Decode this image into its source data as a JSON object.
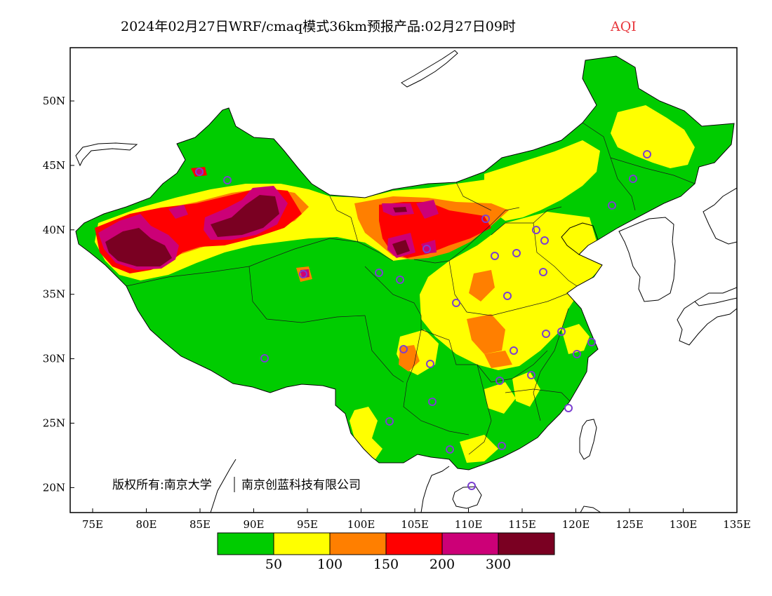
{
  "title": {
    "main": "2024年02月27日WRF/cmaq模式36km预报产品:02月27日09时",
    "variable": "AQI"
  },
  "colors": {
    "title_variable": "#e8383d",
    "station_marker": "#7b3fd0",
    "background": "#ffffff"
  },
  "axes": {
    "lon_labels": [
      "75E",
      "80E",
      "85E",
      "90E",
      "95E",
      "100E",
      "105E",
      "110E",
      "115E",
      "120E",
      "125E",
      "130E",
      "135E"
    ],
    "lat_labels": [
      "50N",
      "45N",
      "40N",
      "35N",
      "30N",
      "25N",
      "20N"
    ]
  },
  "legend": {
    "bins": [
      {
        "color": "#00cc00",
        "label": "50"
      },
      {
        "color": "#ffff00",
        "label": "100"
      },
      {
        "color": "#ff7f00",
        "label": "150"
      },
      {
        "color": "#ff0000",
        "label": "200"
      },
      {
        "color": "#cc0077",
        "label": "300"
      },
      {
        "color": "#7a0022",
        "label": ""
      }
    ]
  },
  "copyright": {
    "part1": "版权所有:南京大学",
    "part2": "南京创蓝科技有限公司"
  }
}
